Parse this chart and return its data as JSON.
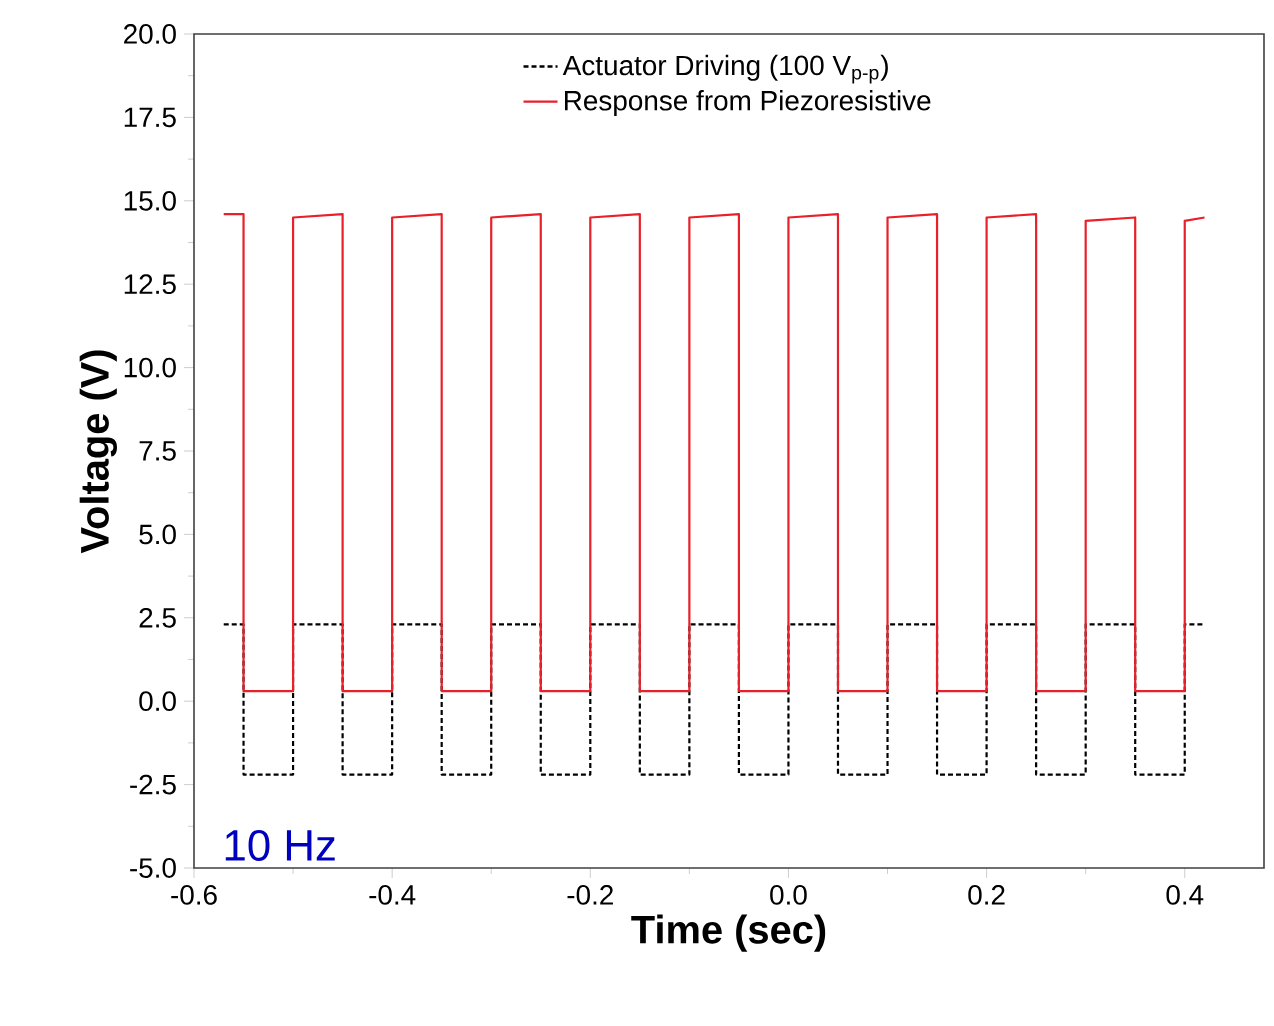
{
  "chart_data": {
    "type": "line",
    "xlabel": "Time (sec)",
    "ylabel": "Voltage (V)",
    "annotations": [
      "10 Hz"
    ],
    "x": [
      -0.57,
      -0.55,
      -0.55,
      -0.5,
      -0.5,
      -0.45,
      -0.45,
      -0.4,
      -0.4,
      -0.35,
      -0.35,
      -0.3,
      -0.3,
      -0.25,
      -0.25,
      -0.2,
      -0.2,
      -0.15,
      -0.15,
      -0.1,
      -0.1,
      -0.05,
      -0.05,
      0.0,
      0.0,
      0.05,
      0.05,
      0.1,
      0.1,
      0.15,
      0.15,
      0.2,
      0.2,
      0.25,
      0.25,
      0.3,
      0.3,
      0.35,
      0.35,
      0.4,
      0.4,
      0.42
    ],
    "series": [
      {
        "name": "Actuator Driving (100 V$_{p-p}$)",
        "color": "#000000",
        "line_style": "dashed",
        "values": [
          2.3,
          2.3,
          -2.2,
          -2.2,
          2.3,
          2.3,
          -2.2,
          -2.2,
          2.3,
          2.3,
          -2.2,
          -2.2,
          2.3,
          2.3,
          -2.2,
          -2.2,
          2.3,
          2.3,
          -2.2,
          -2.2,
          2.3,
          2.3,
          -2.2,
          -2.2,
          2.3,
          2.3,
          -2.2,
          -2.2,
          2.3,
          2.3,
          -2.2,
          -2.2,
          2.3,
          2.3,
          -2.2,
          -2.2,
          2.3,
          2.3,
          -2.2,
          -2.2,
          2.3,
          2.3
        ]
      },
      {
        "name": "Response from Piezoresistive",
        "color": "#e8202a",
        "line_style": "solid",
        "values": [
          14.6,
          14.6,
          0.3,
          0.3,
          14.5,
          14.6,
          0.3,
          0.3,
          14.5,
          14.6,
          0.3,
          0.3,
          14.5,
          14.6,
          0.3,
          0.3,
          14.5,
          14.6,
          0.3,
          0.3,
          14.5,
          14.6,
          0.3,
          0.3,
          14.5,
          14.6,
          0.3,
          0.3,
          14.5,
          14.6,
          0.3,
          0.3,
          14.5,
          14.6,
          0.3,
          0.3,
          14.4,
          14.5,
          0.3,
          0.3,
          14.4,
          14.5
        ]
      }
    ],
    "xlim": [
      -0.6,
      0.48
    ],
    "ylim": [
      -5.0,
      20.0
    ],
    "xticks": [
      {
        "value": -0.6,
        "label": "-0.6"
      },
      {
        "value": -0.4,
        "label": "-0.4"
      },
      {
        "value": -0.2,
        "label": "-0.2"
      },
      {
        "value": 0.0,
        "label": "0.0"
      },
      {
        "value": 0.2,
        "label": "0.2"
      },
      {
        "value": 0.4,
        "label": "0.4"
      }
    ],
    "yticks": [
      {
        "value": -5.0,
        "label": "-5.0"
      },
      {
        "value": -2.5,
        "label": "-2.5"
      },
      {
        "value": 0.0,
        "label": "0.0"
      },
      {
        "value": 2.5,
        "label": "2.5"
      },
      {
        "value": 5.0,
        "label": "5.0"
      },
      {
        "value": 7.5,
        "label": "7.5"
      },
      {
        "value": 10.0,
        "label": "10.0"
      },
      {
        "value": 12.5,
        "label": "12.5"
      },
      {
        "value": 15.0,
        "label": "15.0"
      },
      {
        "value": 17.5,
        "label": "17.5"
      },
      {
        "value": 20.0,
        "label": "20.0"
      }
    ],
    "legend": "top",
    "marker": "none",
    "grid": false
  }
}
